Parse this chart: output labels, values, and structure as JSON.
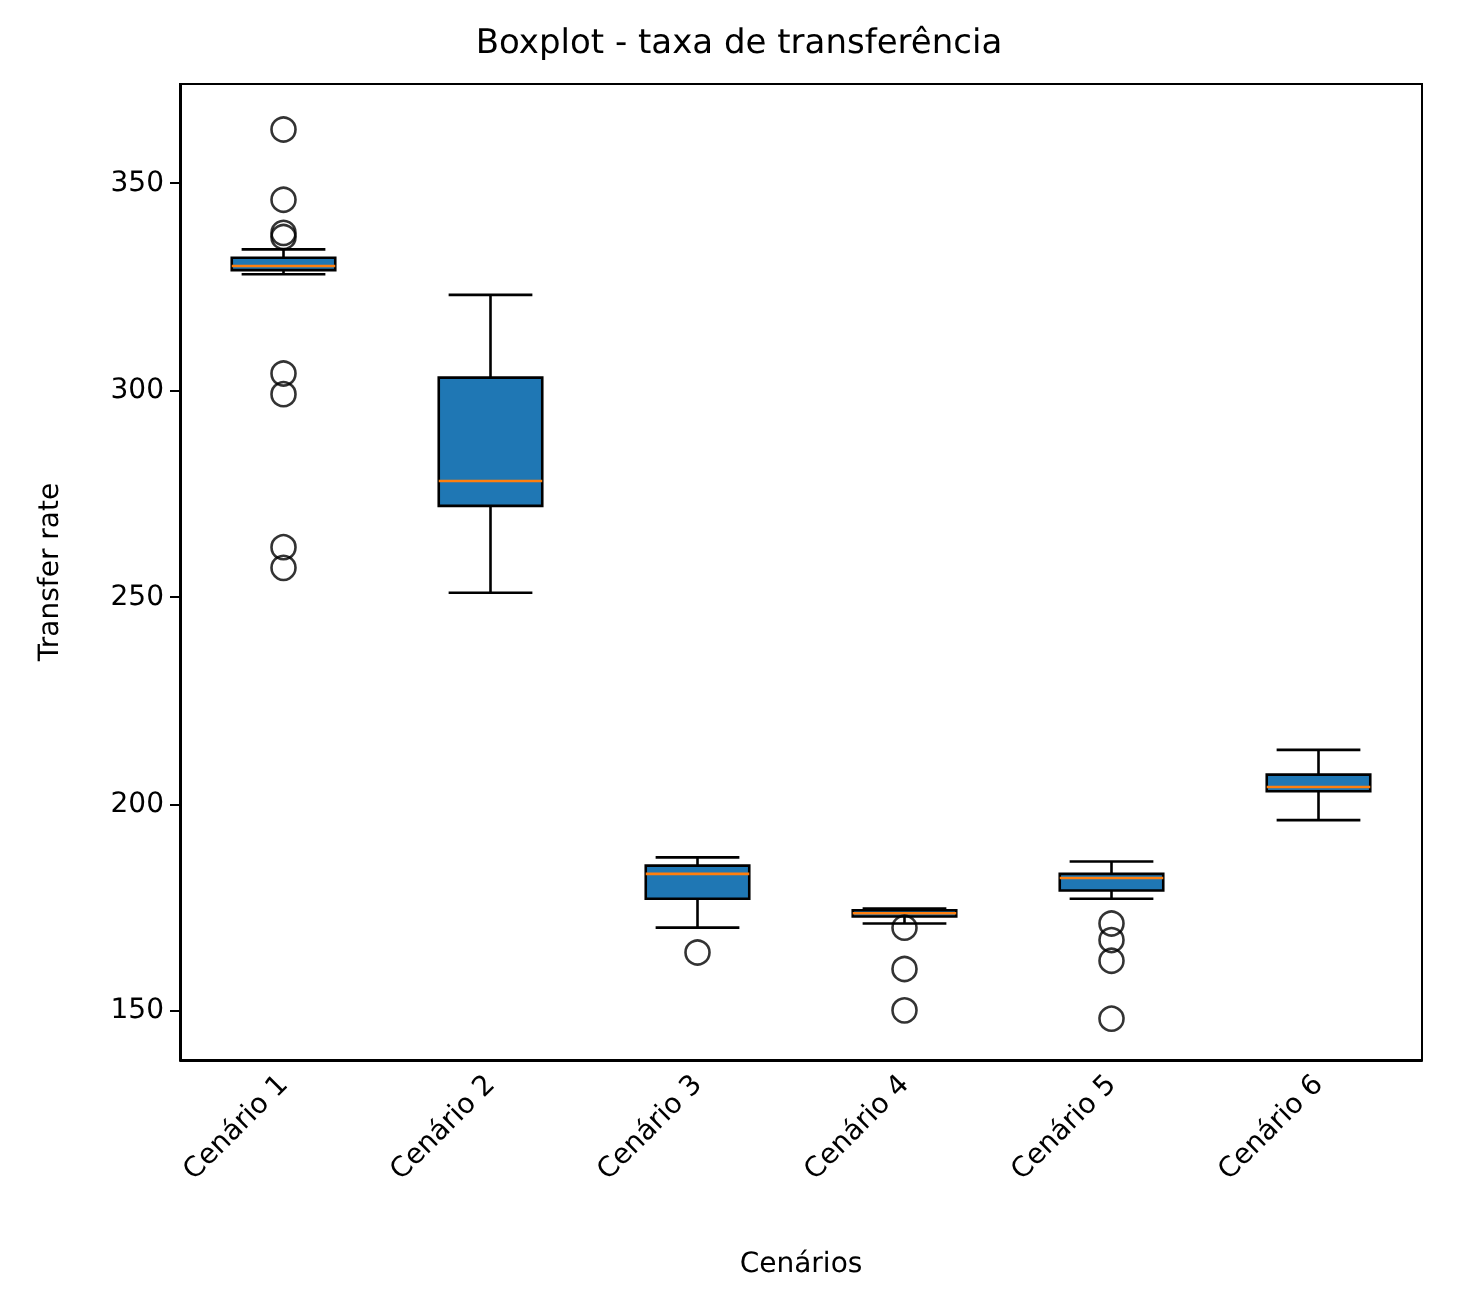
{
  "chart_data": {
    "type": "box",
    "title": "Boxplot - taxa de transferência",
    "xlabel": "Cenários",
    "ylabel": "Transfer rate",
    "categories": [
      "Cenário 1",
      "Cenário 2",
      "Cenário 3",
      "Cenário 4",
      "Cenário 5",
      "Cenário 6"
    ],
    "series": [
      {
        "color": "#1f77b4",
        "boxes": [
          {
            "low": 328,
            "q1": 329,
            "median": 330,
            "q3": 332,
            "high": 334,
            "outliers": [
              363,
              346,
              338,
              337,
              304,
              299,
              262,
              257
            ]
          },
          {
            "low": 251,
            "q1": 272,
            "median": 278,
            "q3": 303,
            "high": 323
          },
          {
            "low": 170,
            "q1": 177,
            "median": 183,
            "q3": 185,
            "high": 187,
            "outliers": [
              164
            ]
          },
          {
            "low": 171,
            "q1": 172.7,
            "median": 173.5,
            "q3": 174.2,
            "high": 174.6,
            "outliers": [
              170,
              160,
              150
            ]
          },
          {
            "low": 177,
            "q1": 179,
            "median": 182,
            "q3": 183,
            "high": 186,
            "outliers": [
              171,
              167,
              162,
              148
            ]
          },
          {
            "low": 196,
            "q1": 203,
            "median": 204,
            "q3": 207,
            "high": 213
          }
        ]
      }
    ],
    "ylim": [
      138,
      374
    ],
    "yticks": [
      150,
      200,
      250,
      300,
      350
    ],
    "grid": false,
    "marker": "circle"
  }
}
